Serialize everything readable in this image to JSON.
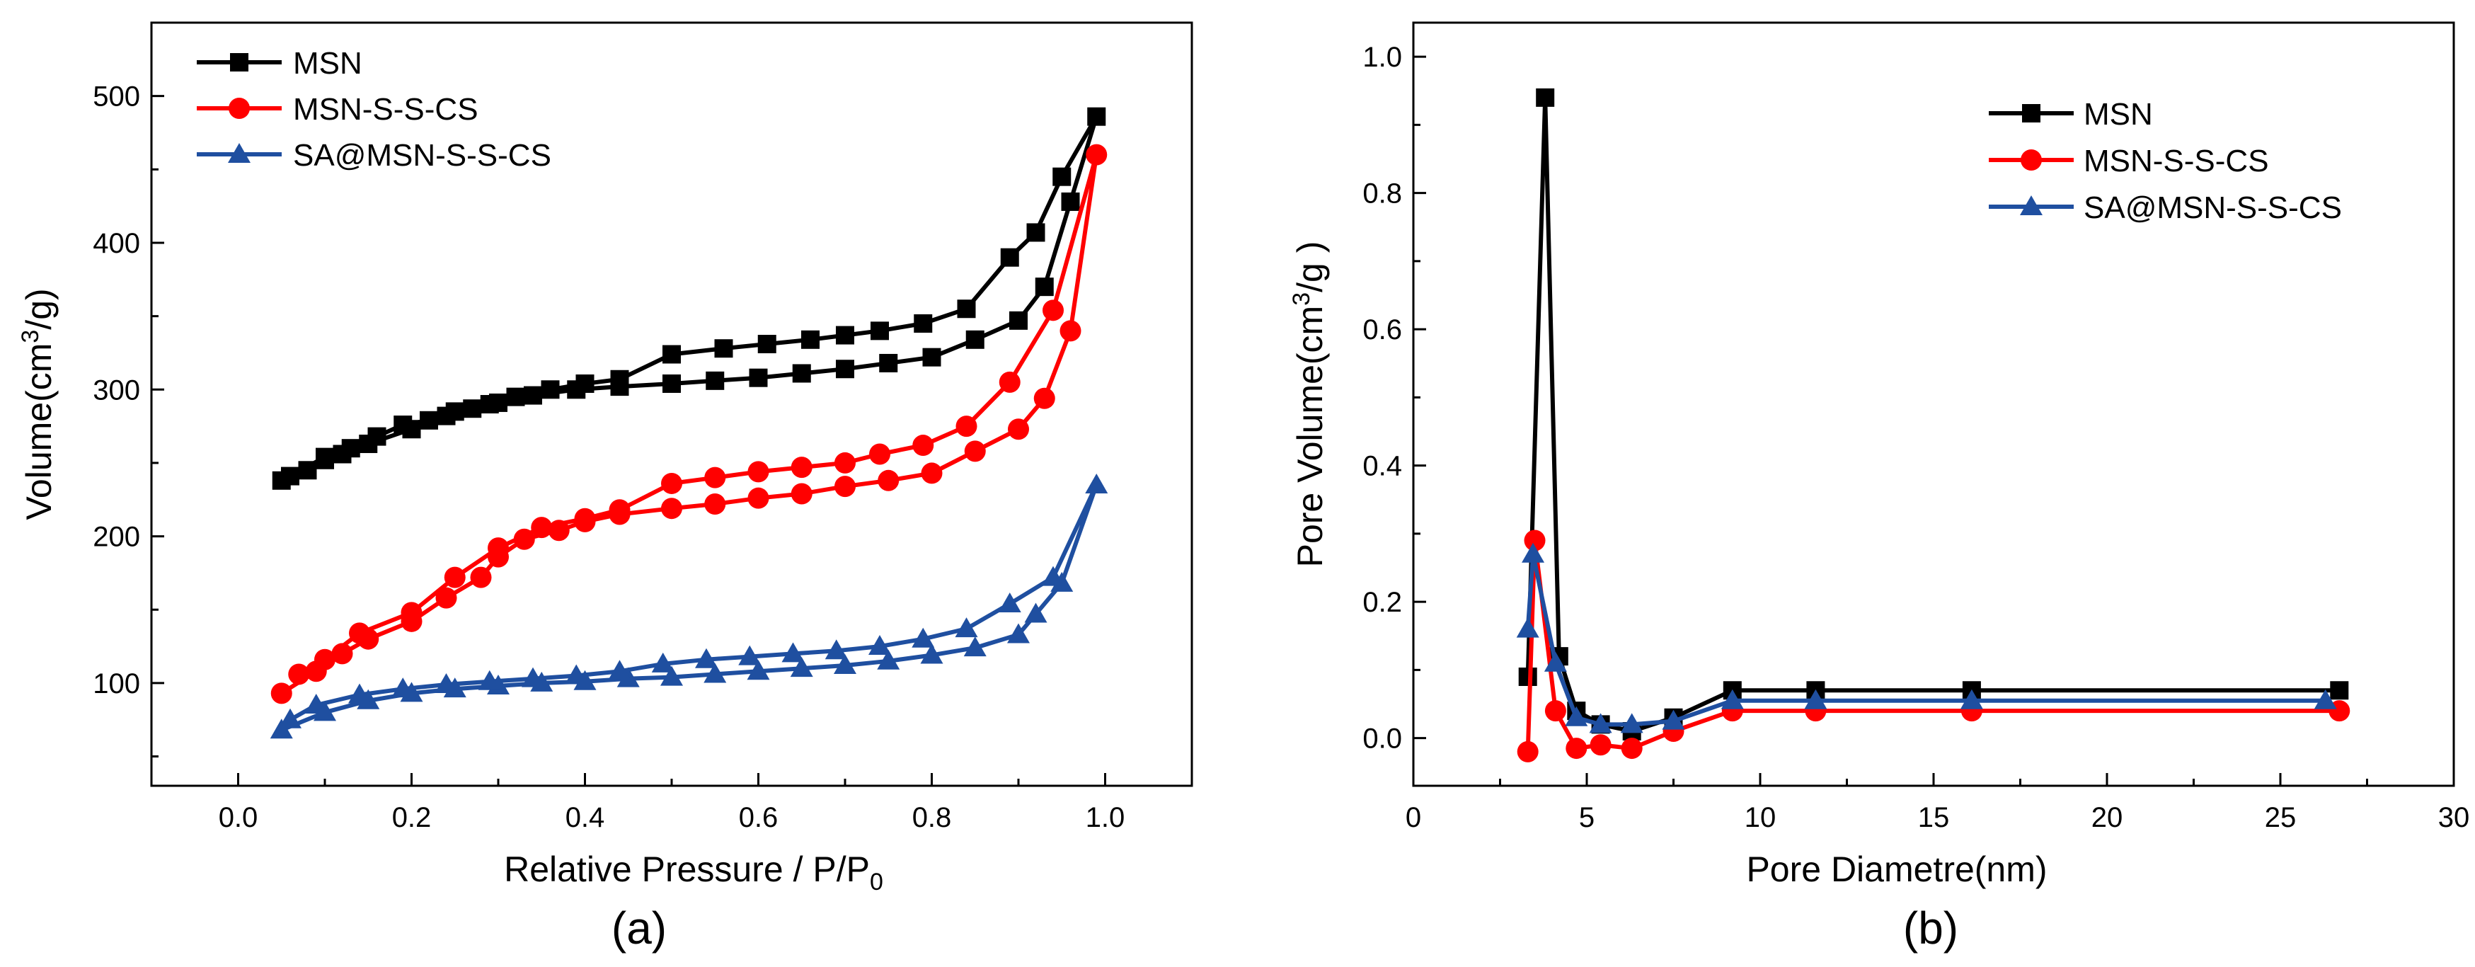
{
  "chart_data": [
    {
      "panel_label": "(a)",
      "type": "line",
      "xlabel": "Relative Pressure / P/P",
      "xlabel_sub": "0",
      "ylabel": "Volume(cm",
      "ylabel_sup": "3",
      "ylabel_tail": "/g)",
      "xlim": [
        -0.1,
        1.1
      ],
      "ylim": [
        30,
        550
      ],
      "xticks": [
        0.0,
        0.2,
        0.4,
        0.6,
        0.8,
        1.0
      ],
      "xtick_labels": [
        "0.0",
        "0.2",
        "0.4",
        "0.6",
        "0.8",
        "1.0"
      ],
      "yticks": [
        100,
        200,
        300,
        400,
        500
      ],
      "ytick_labels": [
        "100",
        "200",
        "300",
        "400",
        "500"
      ],
      "legend_position": "top-left",
      "series": [
        {
          "name": "MSN",
          "color": "#000000",
          "marker": "square",
          "x": [
            0.05,
            0.08,
            0.1,
            0.12,
            0.15,
            0.2,
            0.24,
            0.27,
            0.3,
            0.34,
            0.39,
            0.44,
            0.5,
            0.55,
            0.6,
            0.65,
            0.7,
            0.75,
            0.8,
            0.85,
            0.9,
            0.93,
            0.96,
            0.99,
            0.95,
            0.92,
            0.89,
            0.84,
            0.79,
            0.74,
            0.7,
            0.66,
            0.61,
            0.56,
            0.5,
            0.44,
            0.4,
            0.36,
            0.32,
            0.29,
            0.25,
            0.22,
            0.19,
            0.16,
            0.13,
            0.1,
            0.06
          ],
          "y": [
            238,
            245,
            252,
            256,
            263,
            273,
            282,
            287,
            291,
            296,
            300,
            302,
            304,
            306,
            308,
            311,
            314,
            318,
            322,
            334,
            347,
            370,
            428,
            486,
            445,
            407,
            390,
            355,
            345,
            340,
            337,
            334,
            331,
            328,
            324,
            307,
            304,
            300,
            295,
            290,
            285,
            279,
            276,
            268,
            260,
            254,
            241
          ]
        },
        {
          "name": "MSN-S-S-CS",
          "color": "#ff0000",
          "marker": "circle",
          "x": [
            0.05,
            0.09,
            0.12,
            0.15,
            0.2,
            0.24,
            0.28,
            0.3,
            0.33,
            0.37,
            0.4,
            0.44,
            0.5,
            0.55,
            0.6,
            0.65,
            0.7,
            0.75,
            0.8,
            0.85,
            0.9,
            0.93,
            0.96,
            0.99,
            0.94,
            0.89,
            0.84,
            0.79,
            0.74,
            0.7,
            0.65,
            0.6,
            0.55,
            0.5,
            0.44,
            0.4,
            0.35,
            0.3,
            0.25,
            0.2,
            0.14,
            0.1,
            0.07
          ],
          "y": [
            93,
            108,
            120,
            130,
            142,
            158,
            172,
            186,
            198,
            204,
            210,
            215,
            219,
            222,
            226,
            229,
            234,
            238,
            243,
            258,
            273,
            294,
            340,
            460,
            354,
            305,
            275,
            262,
            256,
            250,
            247,
            244,
            240,
            236,
            218,
            212,
            206,
            192,
            172,
            148,
            134,
            116,
            106
          ]
        },
        {
          "name": "SA@MSN-S-S-CS",
          "color": "#1f4fa0",
          "marker": "triangle",
          "x": [
            0.05,
            0.1,
            0.15,
            0.2,
            0.25,
            0.3,
            0.35,
            0.4,
            0.45,
            0.5,
            0.55,
            0.6,
            0.65,
            0.7,
            0.75,
            0.8,
            0.85,
            0.9,
            0.92,
            0.95,
            0.99,
            0.94,
            0.89,
            0.84,
            0.79,
            0.74,
            0.69,
            0.64,
            0.59,
            0.54,
            0.49,
            0.44,
            0.39,
            0.34,
            0.29,
            0.24,
            0.19,
            0.14,
            0.09,
            0.06
          ],
          "y": [
            68,
            80,
            88,
            93,
            96,
            98,
            100,
            101,
            103,
            104,
            106,
            108,
            110,
            112,
            115,
            119,
            124,
            133,
            147,
            168,
            235,
            172,
            154,
            137,
            130,
            125,
            122,
            120,
            118,
            116,
            113,
            108,
            105,
            103,
            101,
            99,
            96,
            92,
            85,
            75
          ]
        }
      ]
    },
    {
      "panel_label": "(b)",
      "type": "line",
      "xlabel": "Pore Diametre(nm)",
      "ylabel": "Pore Volume(cm",
      "ylabel_sup": "3",
      "ylabel_tail": "/g )",
      "xlim": [
        0,
        30
      ],
      "ylim": [
        -0.07,
        1.05
      ],
      "xticks": [
        0,
        5,
        10,
        15,
        20,
        25,
        30
      ],
      "xtick_labels": [
        "0",
        "5",
        "10",
        "15",
        "20",
        "25",
        "30"
      ],
      "yticks": [
        0.0,
        0.2,
        0.4,
        0.6,
        0.8,
        1.0
      ],
      "ytick_labels": [
        "0.0",
        "0.2",
        "0.4",
        "0.6",
        "0.8",
        "1.0"
      ],
      "legend_position": "top-right",
      "series": [
        {
          "name": "MSN",
          "color": "#000000",
          "marker": "square",
          "x": [
            3.3,
            3.8,
            4.2,
            4.7,
            5.4,
            6.3,
            7.5,
            9.2,
            11.6,
            16.1,
            26.7
          ],
          "y": [
            0.09,
            0.94,
            0.12,
            0.04,
            0.02,
            0.01,
            0.03,
            0.07,
            0.07,
            0.07,
            0.07
          ]
        },
        {
          "name": "MSN-S-S-CS",
          "color": "#ff0000",
          "marker": "circle",
          "x": [
            3.3,
            3.5,
            4.1,
            4.7,
            5.4,
            6.3,
            7.5,
            9.2,
            11.6,
            16.1,
            26.7
          ],
          "y": [
            -0.02,
            0.29,
            0.04,
            -0.015,
            -0.01,
            -0.015,
            0.01,
            0.04,
            0.04,
            0.04,
            0.04
          ]
        },
        {
          "name": "SA@MSN-S-S-CS",
          "color": "#1f4fa0",
          "marker": "triangle",
          "x": [
            3.3,
            3.45,
            4.1,
            4.7,
            5.4,
            6.3,
            7.5,
            9.2,
            11.6,
            16.1,
            26.3
          ],
          "y": [
            0.16,
            0.27,
            0.11,
            0.03,
            0.02,
            0.02,
            0.025,
            0.055,
            0.055,
            0.055,
            0.055
          ]
        }
      ]
    }
  ]
}
